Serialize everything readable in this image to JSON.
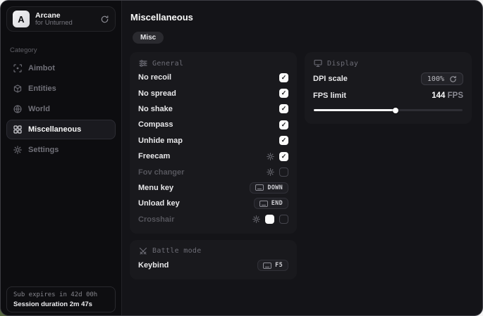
{
  "app": {
    "name": "Arcane",
    "subtitle": "for Unturned",
    "logo_letter": "A"
  },
  "sidebar": {
    "category_label": "Category",
    "items": [
      {
        "label": "Aimbot"
      },
      {
        "label": "Entities"
      },
      {
        "label": "World"
      },
      {
        "label": "Miscellaneous"
      },
      {
        "label": "Settings"
      }
    ],
    "footer": {
      "sub_expires": "Sub expires in 42d 00h",
      "session_duration": "Session duration 2m 47s"
    }
  },
  "main": {
    "title": "Miscellaneous",
    "tab_label": "Misc",
    "general": {
      "title": "General",
      "rows": [
        {
          "label": "No recoil",
          "checked": true
        },
        {
          "label": "No spread",
          "checked": true
        },
        {
          "label": "No shake",
          "checked": true
        },
        {
          "label": "Compass",
          "checked": true
        },
        {
          "label": "Unhide map",
          "checked": true
        },
        {
          "label": "Freecam",
          "checked": true
        },
        {
          "label": "Fov changer",
          "checked": false
        },
        {
          "label": "Menu key",
          "key": "DOWN"
        },
        {
          "label": "Unload key",
          "key": "END"
        },
        {
          "label": "Crosshair",
          "checked": false,
          "swatch_color": "#fcfcfc"
        }
      ]
    },
    "battle": {
      "title": "Battle mode",
      "keybind_label": "Keybind",
      "keybind_key": "F5"
    },
    "display": {
      "title": "Display",
      "dpi_label": "DPI scale",
      "dpi_value": "100%",
      "fps_label": "FPS limit",
      "fps_value": "144",
      "fps_unit": " FPS",
      "fps_slider_percent": 55
    }
  },
  "colors": {
    "accent": "#fafafa",
    "card_bg": "#19191d",
    "sidebar_bg": "#0d0d10",
    "main_bg": "#141418"
  }
}
